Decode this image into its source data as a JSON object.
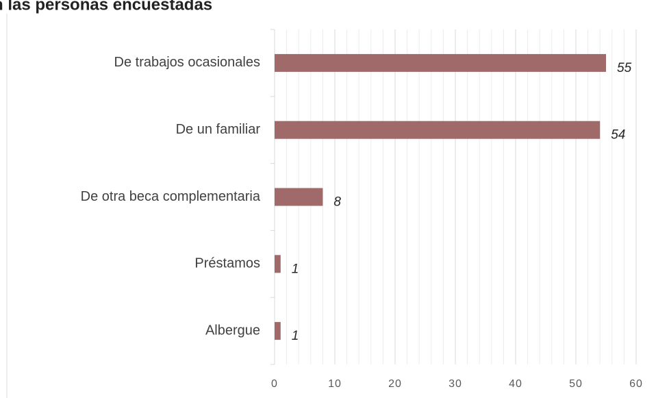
{
  "chart_data": {
    "type": "barh",
    "title": "n las personas encuestadas",
    "categories": [
      "De trabajos ocasionales",
      "De un familiar",
      "De otra beca complementaria",
      "Préstamos",
      "Albergue"
    ],
    "values": [
      55,
      54,
      8,
      1,
      1
    ],
    "color": "#a06a6a",
    "xlim": [
      0,
      60
    ],
    "xticks": [
      0,
      10,
      20,
      30,
      40,
      50,
      60
    ],
    "grid": true,
    "minor_grid": true
  }
}
